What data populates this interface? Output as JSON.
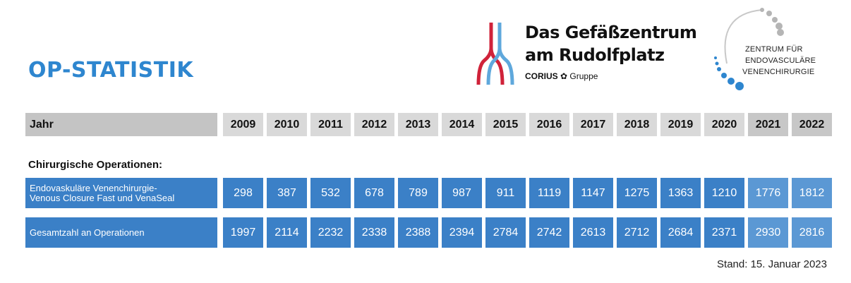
{
  "title": "OP-STATISTIK",
  "logo1": {
    "line1": "Das Gefäßzentrum",
    "line2": "am Rudolfplatz",
    "brand": "CORIUS",
    "brand_suffix": "Gruppe",
    "colors": {
      "red": "#d0233a",
      "blue": "#5fa8dc"
    }
  },
  "logo2": {
    "line1": "ZENTRUM FÜR",
    "line2": "ENDOVASCULÄRE",
    "line3": "VENENCHIRURGIE",
    "colors": {
      "gray": "#b5b5b5",
      "blue": "#2e86cf"
    }
  },
  "table": {
    "header_label": "Jahr",
    "years": [
      "2009",
      "2010",
      "2011",
      "2012",
      "2013",
      "2014",
      "2015",
      "2016",
      "2017",
      "2018",
      "2019",
      "2020",
      "2021",
      "2022"
    ],
    "section_label": "Chirurgische Operationen:",
    "rows": [
      {
        "label_line1": "Endovaskuläre Venenchirurgie-",
        "label_line2": "Venous Closure Fast und VenaSeal",
        "values": [
          "298",
          "387",
          "532",
          "678",
          "789",
          "987",
          "911",
          "1119",
          "1147",
          "1275",
          "1363",
          "1210",
          "1776",
          "1812"
        ]
      },
      {
        "label_line1": "Gesamtzahl an Operationen",
        "label_line2": "",
        "values": [
          "1997",
          "2114",
          "2232",
          "2338",
          "2388",
          "2394",
          "2784",
          "2742",
          "2613",
          "2712",
          "2684",
          "2371",
          "2930",
          "2816"
        ]
      }
    ]
  },
  "footer": "Stand: 15. Januar 2023",
  "colors": {
    "accent": "#2e86cf",
    "cell_blue": "#3b80c7",
    "header_gray": "#d9d9d9"
  }
}
